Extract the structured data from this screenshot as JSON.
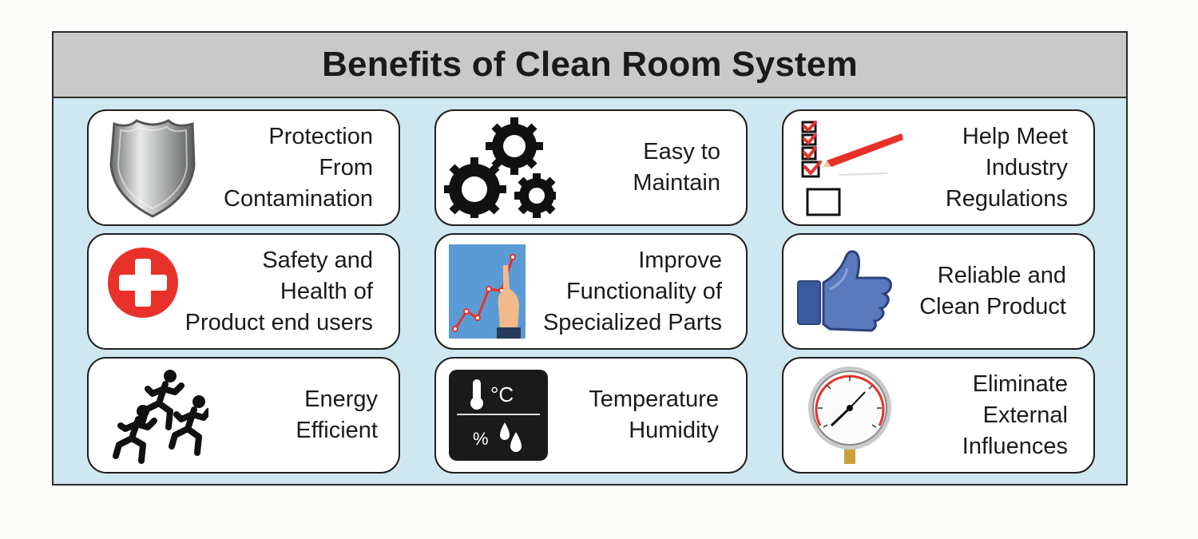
{
  "title": "Benefits of Clean Room System",
  "benefits": [
    {
      "icon": "shield-icon",
      "lines": [
        "Protection",
        "From",
        "Contamination"
      ]
    },
    {
      "icon": "gears-icon",
      "lines": [
        "Easy to",
        "Maintain"
      ]
    },
    {
      "icon": "checklist-icon",
      "lines": [
        "Help Meet",
        "Industry",
        "Regulations"
      ]
    },
    {
      "icon": "medical-cross-icon",
      "lines": [
        "Safety and",
        "Health of",
        "Product end users"
      ]
    },
    {
      "icon": "growth-chart-icon",
      "lines": [
        "Improve",
        "Functionality of",
        "Specialized Parts"
      ]
    },
    {
      "icon": "thumbs-up-icon",
      "lines": [
        "Reliable and",
        "Clean Product"
      ]
    },
    {
      "icon": "runners-icon",
      "lines": [
        "Energy",
        "Efficient"
      ]
    },
    {
      "icon": "temperature-humidity-icon",
      "lines": [
        "Temperature",
        "Humidity"
      ],
      "icon_text": [
        "°C",
        "%"
      ]
    },
    {
      "icon": "pressure-gauge-icon",
      "lines": [
        "Eliminate",
        "External",
        "Influences"
      ]
    }
  ],
  "colors": {
    "panel_background": "#cfe7f1",
    "header_background": "#c9c9c9",
    "accent_red": "#e8312a",
    "thumb_blue": "#3b5a9e"
  }
}
